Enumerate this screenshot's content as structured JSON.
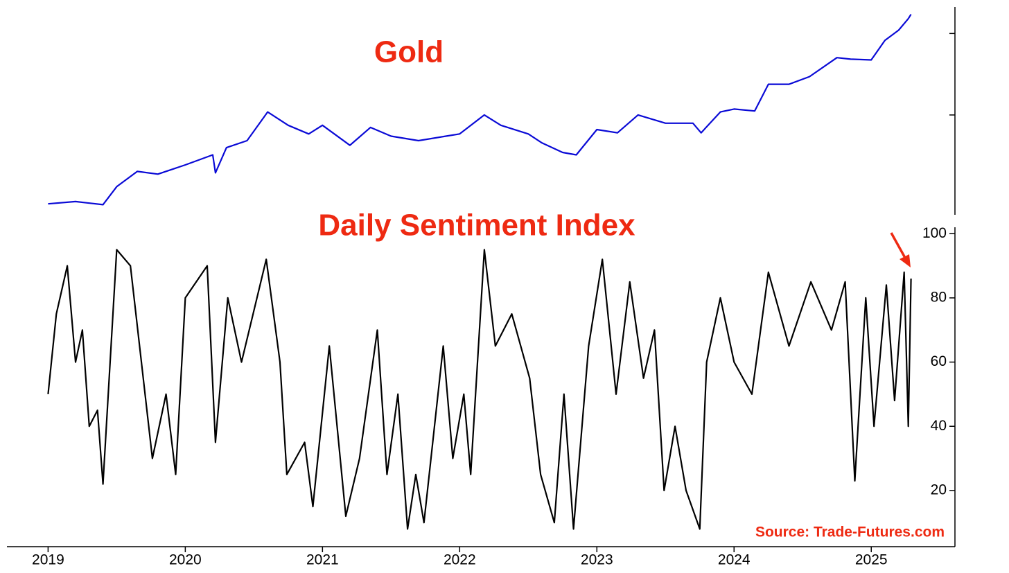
{
  "chart_data": [
    {
      "type": "line",
      "title": "Gold",
      "log_scale": true,
      "tick_labels": false,
      "xlim": [
        2018.7,
        2025.61
      ],
      "ylim": [
        1217,
        3424
      ],
      "yticks": [
        2000,
        3000
      ],
      "series": [
        {
          "name": "Gold",
          "color": "#0a0ad6",
          "x": [
            2019.0,
            2019.2,
            2019.4,
            2019.5,
            2019.65,
            2019.8,
            2020.0,
            2020.2,
            2020.22,
            2020.3,
            2020.45,
            2020.6,
            2020.75,
            2020.9,
            2021.0,
            2021.2,
            2021.35,
            2021.5,
            2021.7,
            2021.9,
            2022.0,
            2022.18,
            2022.3,
            2022.5,
            2022.6,
            2022.75,
            2022.85,
            2023.0,
            2023.15,
            2023.3,
            2023.5,
            2023.7,
            2023.76,
            2023.9,
            2024.0,
            2024.15,
            2024.25,
            2024.4,
            2024.55,
            2024.75,
            2024.85,
            2025.0,
            2025.1,
            2025.2,
            2025.27,
            2025.29
          ],
          "values": [
            1285,
            1300,
            1280,
            1400,
            1510,
            1490,
            1560,
            1640,
            1500,
            1700,
            1760,
            2030,
            1900,
            1820,
            1900,
            1720,
            1880,
            1800,
            1760,
            1800,
            1820,
            2000,
            1900,
            1820,
            1740,
            1660,
            1640,
            1860,
            1830,
            2000,
            1920,
            1920,
            1830,
            2030,
            2060,
            2040,
            2330,
            2330,
            2420,
            2660,
            2640,
            2630,
            2900,
            3050,
            3230,
            3300
          ]
        }
      ]
    },
    {
      "type": "line",
      "title": "Daily Sentiment Index",
      "annotation": "Source: Trade-Futures.com",
      "xlim": [
        2018.7,
        2025.61
      ],
      "xticks": [
        2019,
        2020,
        2021,
        2022,
        2023,
        2024,
        2025
      ],
      "ylim": [
        2.5,
        102
      ],
      "yticks": [
        20,
        40,
        60,
        80,
        100
      ],
      "series": [
        {
          "name": "Daily Sentiment Index",
          "color": "#000000",
          "x": [
            2019.0,
            2019.06,
            2019.14,
            2019.2,
            2019.25,
            2019.3,
            2019.36,
            2019.4,
            2019.5,
            2019.6,
            2019.76,
            2019.86,
            2019.93,
            2020.0,
            2020.16,
            2020.22,
            2020.31,
            2020.41,
            2020.59,
            2020.69,
            2020.74,
            2020.87,
            2020.93,
            2021.05,
            2021.17,
            2021.27,
            2021.4,
            2021.47,
            2021.55,
            2021.62,
            2021.68,
            2021.74,
            2021.88,
            2021.95,
            2022.03,
            2022.08,
            2022.18,
            2022.26,
            2022.38,
            2022.51,
            2022.59,
            2022.69,
            2022.76,
            2022.83,
            2022.94,
            2023.04,
            2023.14,
            2023.24,
            2023.34,
            2023.42,
            2023.49,
            2023.57,
            2023.65,
            2023.75,
            2023.8,
            2023.9,
            2024.0,
            2024.13,
            2024.25,
            2024.4,
            2024.56,
            2024.71,
            2024.81,
            2024.88,
            2024.96,
            2025.02,
            2025.11,
            2025.17,
            2025.24,
            2025.27,
            2025.29
          ],
          "values": [
            50,
            75,
            90,
            60,
            70,
            40,
            45,
            22,
            95,
            90,
            30,
            50,
            25,
            80,
            90,
            35,
            80,
            60,
            92,
            60,
            25,
            35,
            15,
            65,
            12,
            30,
            70,
            25,
            50,
            8,
            25,
            10,
            65,
            30,
            50,
            25,
            95,
            65,
            75,
            55,
            25,
            10,
            50,
            8,
            65,
            92,
            50,
            85,
            55,
            70,
            20,
            40,
            20,
            8,
            60,
            80,
            60,
            50,
            88,
            65,
            85,
            70,
            85,
            23,
            80,
            40,
            84,
            48,
            88,
            40,
            86
          ]
        }
      ]
    }
  ]
}
